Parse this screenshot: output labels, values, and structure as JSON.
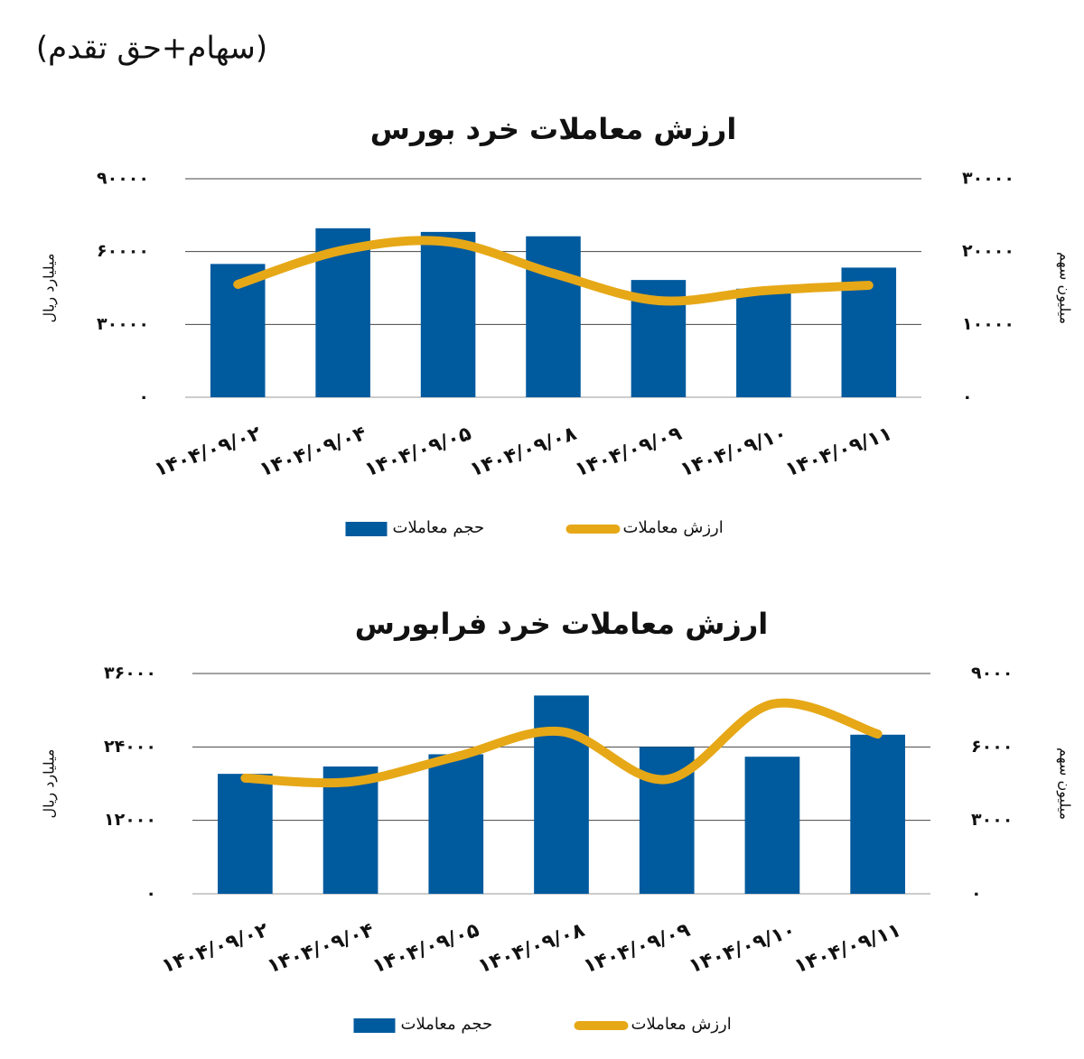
{
  "header": "(سهام+حق تقدم)",
  "chart_data": [
    {
      "type": "combo",
      "title": "ارزش معاملات خرد بورس",
      "categories": [
        "۱۴۰۴/۰۹/۰۲",
        "۱۴۰۴/۰۹/۰۴",
        "۱۴۰۴/۰۹/۰۵",
        "۱۴۰۴/۰۹/۰۸",
        "۱۴۰۴/۰۹/۰۹",
        "۱۴۰۴/۰۹/۱۰",
        "۱۴۰۴/۰۹/۱۱"
      ],
      "y_label": "میلیارد ریال",
      "y2_label": "میلیون سهم",
      "ylim": [
        0,
        90000
      ],
      "yticks": [
        {
          "value": 0,
          "label": "۰"
        },
        {
          "value": 30000,
          "label": "۳۰۰۰۰"
        },
        {
          "value": 60000,
          "label": "۶۰۰۰۰"
        },
        {
          "value": 90000,
          "label": "۹۰۰۰۰"
        }
      ],
      "y2lim": [
        0,
        30000
      ],
      "y2ticks": [
        {
          "value": 0,
          "label": "۰"
        },
        {
          "value": 10000,
          "label": "۱۰۰۰۰"
        },
        {
          "value": 20000,
          "label": "۲۰۰۰۰"
        },
        {
          "value": 30000,
          "label": "۳۰۰۰۰"
        }
      ],
      "grid": true,
      "series": [
        {
          "name": "حجم معاملات",
          "type": "bar",
          "axis": "y2",
          "color": "#005a9e",
          "values": [
            18300,
            23200,
            22700,
            22100,
            16100,
            14900,
            17800
          ]
        },
        {
          "name": "ارزش معاملات",
          "type": "line",
          "color": "#e6a817",
          "values": [
            46500,
            60600,
            64000,
            51000,
            39800,
            43900,
            46100
          ]
        }
      ]
    },
    {
      "type": "combo",
      "title": "ارزش معاملات خرد فرابورس",
      "categories": [
        "۱۴۰۴/۰۹/۰۲",
        "۱۴۰۴/۰۹/۰۴",
        "۱۴۰۴/۰۹/۰۵",
        "۱۴۰۴/۰۹/۰۸",
        "۱۴۰۴/۰۹/۰۹",
        "۱۴۰۴/۰۹/۱۰",
        "۱۴۰۴/۰۹/۱۱"
      ],
      "y_label": "میلیارد ریال",
      "y2_label": "میلیون سهم",
      "ylim": [
        0,
        36000
      ],
      "yticks": [
        {
          "value": 0,
          "label": "۰"
        },
        {
          "value": 12000,
          "label": "۱۲۰۰۰"
        },
        {
          "value": 24000,
          "label": "۲۴۰۰۰"
        },
        {
          "value": 36000,
          "label": "۳۶۰۰۰"
        }
      ],
      "y2lim": [
        0,
        9000
      ],
      "y2ticks": [
        {
          "value": 0,
          "label": "۰"
        },
        {
          "value": 3000,
          "label": "۳۰۰۰"
        },
        {
          "value": 6000,
          "label": "۶۰۰۰"
        },
        {
          "value": 9000,
          "label": "۹۰۰۰"
        }
      ],
      "grid": true,
      "series": [
        {
          "name": "حجم معاملات",
          "type": "bar",
          "axis": "y2",
          "color": "#005a9e",
          "values": [
            4900,
            5200,
            5700,
            8100,
            6000,
            5600,
            6500
          ]
        },
        {
          "name": "ارزش معاملات",
          "type": "line",
          "color": "#e6a817",
          "values": [
            18900,
            18300,
            22400,
            26500,
            18700,
            31000,
            26100
          ]
        }
      ]
    }
  ]
}
